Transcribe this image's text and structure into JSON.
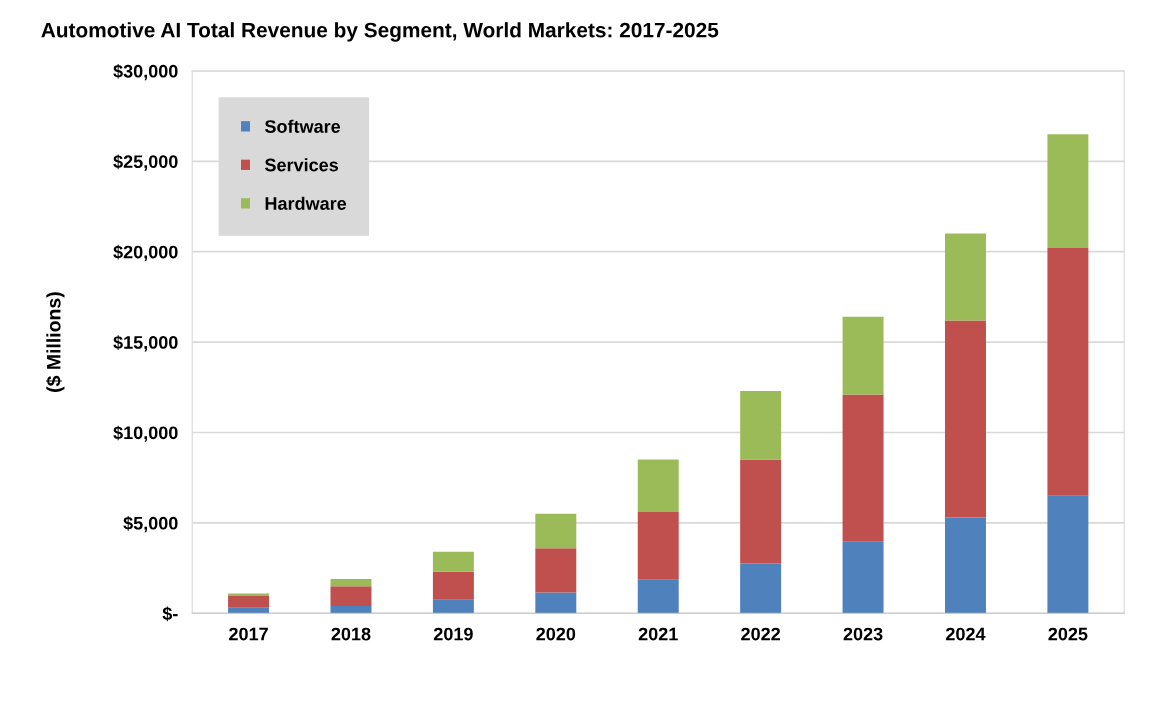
{
  "chart_data": {
    "type": "bar",
    "title": "Automotive AI Total Revenue by Segment, World Markets: 2017-2025",
    "ylabel": "($ Millions)",
    "categories": [
      "2017",
      "2018",
      "2019",
      "2020",
      "2021",
      "2022",
      "2023",
      "2024",
      "2025"
    ],
    "stacked": true,
    "series": [
      {
        "name": "Software",
        "color": "#4f81bd",
        "values": [
          300,
          400,
          750,
          1150,
          1850,
          2750,
          3950,
          5300,
          6500
        ]
      },
      {
        "name": "Services",
        "color": "#c0504d",
        "values": [
          650,
          1100,
          1550,
          2450,
          3750,
          5750,
          8150,
          10900,
          13700
        ]
      },
      {
        "name": "Hardware",
        "color": "#9bbb59",
        "values": [
          150,
          400,
          1100,
          1900,
          2900,
          3800,
          4300,
          4800,
          6300
        ]
      }
    ],
    "ylim": [
      0,
      30000
    ],
    "yticks": [
      {
        "value": 0,
        "label": "$-"
      },
      {
        "value": 5000,
        "label": "$5,000"
      },
      {
        "value": 10000,
        "label": "$10,000"
      },
      {
        "value": 15000,
        "label": "$15,000"
      },
      {
        "value": 20000,
        "label": "$20,000"
      },
      {
        "value": 25000,
        "label": "$25,000"
      },
      {
        "value": 30000,
        "label": "$30,000"
      }
    ],
    "grid": "y",
    "legend": "top left"
  }
}
